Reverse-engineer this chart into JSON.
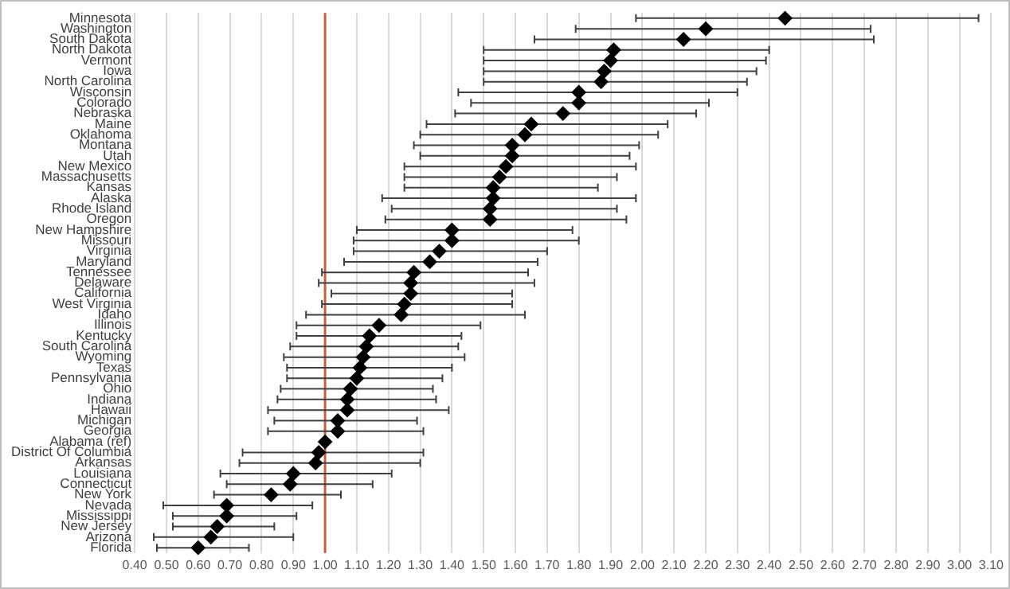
{
  "chart_data": {
    "type": "scatter",
    "orientation": "horizontal",
    "marker": "diamond",
    "grid": "x",
    "legend": false,
    "categories": [
      "Minnesota",
      "Washington",
      "South Dakota",
      "North Dakota",
      "Vermont",
      "Iowa",
      "North Carolina",
      "Wisconsin",
      "Colorado",
      "Nebraska",
      "Maine",
      "Oklahoma",
      "Montana",
      "Utah",
      "New Mexico",
      "Massachusetts",
      "Kansas",
      "Alaska",
      "Rhode Island",
      "Oregon",
      "New Hampshire",
      "Missouri",
      "Virginia",
      "Maryland",
      "Tennessee",
      "Delaware",
      "California",
      "West Virginia",
      "Idaho",
      "Illinois",
      "Kentucky",
      "South Carolina",
      "Wyoming",
      "Texas",
      "Pennsylvania",
      "Ohio",
      "Indiana",
      "Hawaii",
      "Michigan",
      "Georgia",
      "Alabama (ref)",
      "District Of Columbia",
      "Arkansas",
      "Louisiana",
      "Connecticut",
      "New York",
      "Nevada",
      "Mississippi",
      "New Jersey",
      "Arizona",
      "Florida"
    ],
    "series": [
      {
        "color": "#000000",
        "values": [
          2.45,
          2.2,
          2.13,
          1.91,
          1.9,
          1.88,
          1.87,
          1.8,
          1.8,
          1.75,
          1.65,
          1.63,
          1.59,
          1.59,
          1.57,
          1.55,
          1.53,
          1.53,
          1.52,
          1.52,
          1.4,
          1.4,
          1.36,
          1.33,
          1.28,
          1.27,
          1.27,
          1.25,
          1.24,
          1.17,
          1.14,
          1.13,
          1.12,
          1.11,
          1.1,
          1.08,
          1.07,
          1.07,
          1.04,
          1.04,
          1.0,
          0.98,
          0.97,
          0.9,
          0.89,
          0.83,
          0.69,
          0.69,
          0.66,
          0.64,
          0.6
        ],
        "errors": [
          [
            1.98,
            3.06
          ],
          [
            1.79,
            2.72
          ],
          [
            1.66,
            2.73
          ],
          [
            1.5,
            2.4
          ],
          [
            1.5,
            2.39
          ],
          [
            1.5,
            2.36
          ],
          [
            1.5,
            2.33
          ],
          [
            1.42,
            2.3
          ],
          [
            1.46,
            2.21
          ],
          [
            1.41,
            2.17
          ],
          [
            1.32,
            2.08
          ],
          [
            1.3,
            2.05
          ],
          [
            1.28,
            1.99
          ],
          [
            1.3,
            1.96
          ],
          [
            1.25,
            1.98
          ],
          [
            1.25,
            1.92
          ],
          [
            1.25,
            1.86
          ],
          [
            1.18,
            1.98
          ],
          [
            1.21,
            1.92
          ],
          [
            1.19,
            1.95
          ],
          [
            1.1,
            1.78
          ],
          [
            1.09,
            1.8
          ],
          [
            1.09,
            1.7
          ],
          [
            1.06,
            1.67
          ],
          [
            0.99,
            1.64
          ],
          [
            0.98,
            1.66
          ],
          [
            1.02,
            1.59
          ],
          [
            0.99,
            1.59
          ],
          [
            0.94,
            1.63
          ],
          [
            0.91,
            1.49
          ],
          [
            0.91,
            1.43
          ],
          [
            0.89,
            1.42
          ],
          [
            0.87,
            1.44
          ],
          [
            0.88,
            1.4
          ],
          [
            0.88,
            1.37
          ],
          [
            0.86,
            1.34
          ],
          [
            0.85,
            1.35
          ],
          [
            0.82,
            1.39
          ],
          [
            0.84,
            1.29
          ],
          [
            0.82,
            1.31
          ],
          null,
          [
            0.74,
            1.31
          ],
          [
            0.73,
            1.3
          ],
          [
            0.67,
            1.21
          ],
          [
            0.69,
            1.15
          ],
          [
            0.65,
            1.05
          ],
          [
            0.49,
            0.96
          ],
          [
            0.52,
            0.91
          ],
          [
            0.52,
            0.84
          ],
          [
            0.46,
            0.9
          ],
          [
            0.47,
            0.76
          ]
        ]
      }
    ],
    "xlim": [
      0.4,
      3.1
    ],
    "xticks": [
      {
        "value": 0.4,
        "label": "0.40"
      },
      {
        "value": 0.5,
        "label": "0.50"
      },
      {
        "value": 0.6,
        "label": "0.60"
      },
      {
        "value": 0.7,
        "label": "0.70"
      },
      {
        "value": 0.8,
        "label": "0.80"
      },
      {
        "value": 0.9,
        "label": "0.90"
      },
      {
        "value": 1.0,
        "label": "1.00"
      },
      {
        "value": 1.1,
        "label": "1.10"
      },
      {
        "value": 1.2,
        "label": "1.20"
      },
      {
        "value": 1.3,
        "label": "1.30"
      },
      {
        "value": 1.4,
        "label": "1.40"
      },
      {
        "value": 1.5,
        "label": "1.50"
      },
      {
        "value": 1.6,
        "label": "1.60"
      },
      {
        "value": 1.7,
        "label": "1.70"
      },
      {
        "value": 1.8,
        "label": "1.80"
      },
      {
        "value": 1.9,
        "label": "1.90"
      },
      {
        "value": 2.0,
        "label": "2.00"
      },
      {
        "value": 2.1,
        "label": "2.10"
      },
      {
        "value": 2.2,
        "label": "2.20"
      },
      {
        "value": 2.3,
        "label": "2.30"
      },
      {
        "value": 2.4,
        "label": "2.40"
      },
      {
        "value": 2.5,
        "label": "2.50"
      },
      {
        "value": 2.6,
        "label": "2.60"
      },
      {
        "value": 2.7,
        "label": "2.70"
      },
      {
        "value": 2.8,
        "label": "2.80"
      },
      {
        "value": 2.9,
        "label": "2.90"
      },
      {
        "value": 3.0,
        "label": "3.00"
      },
      {
        "value": 3.1,
        "label": "3.10"
      }
    ],
    "ref_lines": [
      {
        "axis": "x",
        "value": 1.0,
        "color": "#c0613f"
      }
    ]
  }
}
